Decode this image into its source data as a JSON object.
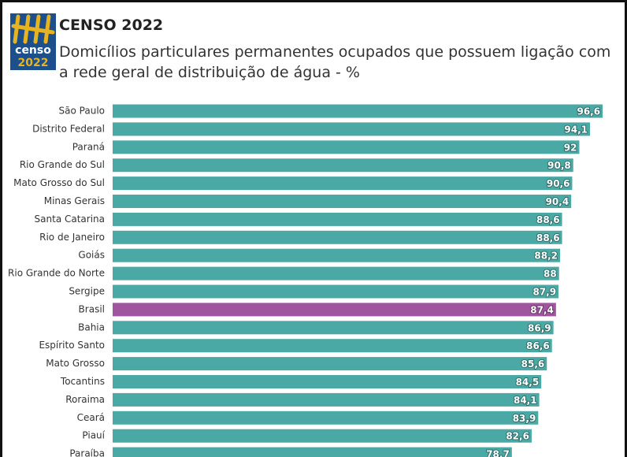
{
  "logo": {
    "line1": "censo",
    "line2": "2022"
  },
  "chart_data": {
    "type": "bar",
    "orientation": "horizontal",
    "title": "CENSO 2022",
    "subtitle": "Domicílios particulares permanentes ocupados que possuem ligação com a rede geral de distribuição de água - %",
    "categories": [
      "São Paulo",
      "Distrito Federal",
      "Paraná",
      "Rio Grande do Sul",
      "Mato Grosso do Sul",
      "Minas Gerais",
      "Santa Catarina",
      "Rio de Janeiro",
      "Goiás",
      "Rio Grande do Norte",
      "Sergipe",
      "Brasil",
      "Bahia",
      "Espírito Santo",
      "Mato Grosso",
      "Tocantins",
      "Roraima",
      "Ceará",
      "Piauí",
      "Paraíba"
    ],
    "values": [
      96.6,
      94.1,
      92,
      90.8,
      90.6,
      90.4,
      88.6,
      88.6,
      88.2,
      88,
      87.9,
      87.4,
      86.9,
      86.6,
      85.6,
      84.5,
      84.1,
      83.9,
      82.6,
      78.7
    ],
    "value_labels": [
      "96,6",
      "94,1",
      "92",
      "90,8",
      "90,6",
      "90,4",
      "88,6",
      "88,6",
      "88,2",
      "88",
      "87,9",
      "87,4",
      "86,9",
      "86,6",
      "85,6",
      "84,5",
      "84,1",
      "83,9",
      "82,6",
      "78,7"
    ],
    "colors": [
      "#4aa9a4",
      "#4aa9a4",
      "#4aa9a4",
      "#4aa9a4",
      "#4aa9a4",
      "#4aa9a4",
      "#4aa9a4",
      "#4aa9a4",
      "#4aa9a4",
      "#4aa9a4",
      "#4aa9a4",
      "#a0559f",
      "#4aa9a4",
      "#4aa9a4",
      "#4aa9a4",
      "#4aa9a4",
      "#4aa9a4",
      "#4aa9a4",
      "#4aa9a4",
      "#4aa9a4"
    ],
    "xlim": [
      0,
      100
    ]
  }
}
